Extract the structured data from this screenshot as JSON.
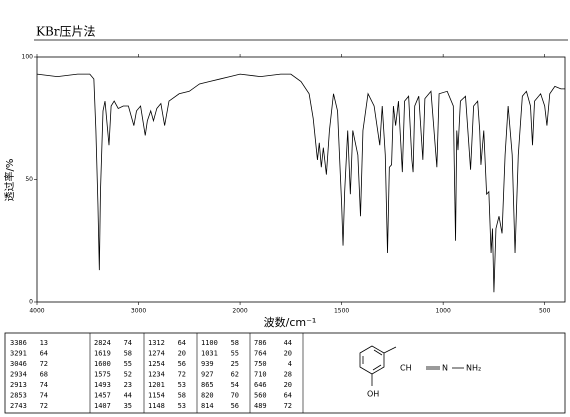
{
  "title": "KBr压片法",
  "chart_data": {
    "type": "line",
    "x_label": "波数/cm⁻¹",
    "y_label": "透过率/%",
    "xlim": [
      4000,
      400
    ],
    "x_scale_change": 2000,
    "xticks": [
      4000,
      3000,
      2000,
      1500,
      1000,
      500
    ],
    "ylim": [
      0,
      100
    ],
    "yticks": [
      0,
      50,
      100
    ],
    "series": [
      {
        "color": "#000000",
        "x": [
          4000,
          3800,
          3600,
          3480,
          3440,
          3420,
          3400,
          3386,
          3375,
          3350,
          3330,
          3291,
          3270,
          3240,
          3200,
          3150,
          3100,
          3046,
          3020,
          2980,
          2934,
          2913,
          2880,
          2853,
          2820,
          2780,
          2743,
          2700,
          2600,
          2500,
          2400,
          2300,
          2200,
          2100,
          2000,
          1900,
          1800,
          1750,
          1700,
          1660,
          1640,
          1619,
          1610,
          1600,
          1590,
          1575,
          1560,
          1540,
          1520,
          1500,
          1493,
          1485,
          1470,
          1457,
          1445,
          1420,
          1407,
          1395,
          1370,
          1340,
          1312,
          1300,
          1285,
          1274,
          1265,
          1254,
          1245,
          1234,
          1220,
          1201,
          1190,
          1170,
          1154,
          1148,
          1140,
          1120,
          1100,
          1090,
          1060,
          1031,
          1020,
          980,
          950,
          939,
          933,
          927,
          915,
          890,
          865,
          850,
          830,
          820,
          814,
          800,
          786,
          775,
          764,
          757,
          750,
          740,
          725,
          710,
          695,
          680,
          660,
          646,
          630,
          610,
          590,
          570,
          560,
          550,
          520,
          500,
          489,
          475,
          450,
          420,
          400
        ],
        "values": [
          93,
          92,
          93,
          93,
          91,
          70,
          40,
          13,
          45,
          78,
          82,
          64,
          80,
          82,
          79,
          80,
          80,
          72,
          78,
          80,
          68,
          74,
          78,
          74,
          79,
          81,
          72,
          82,
          85,
          86,
          89,
          90,
          91,
          92,
          93,
          92,
          93,
          93,
          90,
          85,
          75,
          58,
          65,
          55,
          63,
          52,
          70,
          85,
          78,
          40,
          23,
          45,
          70,
          44,
          70,
          60,
          35,
          70,
          85,
          80,
          64,
          80,
          60,
          20,
          55,
          56,
          80,
          72,
          82,
          53,
          82,
          84,
          58,
          53,
          80,
          84,
          58,
          83,
          86,
          55,
          85,
          86,
          80,
          25,
          70,
          62,
          82,
          84,
          54,
          80,
          82,
          70,
          56,
          70,
          44,
          45,
          20,
          30,
          4,
          30,
          35,
          28,
          60,
          80,
          60,
          20,
          60,
          84,
          86,
          80,
          64,
          82,
          85,
          80,
          72,
          85,
          88,
          87,
          87
        ]
      }
    ]
  },
  "peak_table": {
    "columns": [
      [
        [
          3386,
          13
        ],
        [
          3291,
          64
        ],
        [
          3046,
          72
        ],
        [
          2934,
          68
        ],
        [
          2913,
          74
        ],
        [
          2853,
          74
        ],
        [
          2743,
          72
        ]
      ],
      [
        [
          2824,
          74
        ],
        [
          1619,
          58
        ],
        [
          1600,
          55
        ],
        [
          1575,
          52
        ],
        [
          1493,
          23
        ],
        [
          1457,
          44
        ],
        [
          1407,
          35
        ]
      ],
      [
        [
          1312,
          64
        ],
        [
          1274,
          20
        ],
        [
          1254,
          56
        ],
        [
          1234,
          72
        ],
        [
          1201,
          53
        ],
        [
          1154,
          58
        ],
        [
          1148,
          53
        ]
      ],
      [
        [
          1100,
          58
        ],
        [
          1031,
          55
        ],
        [
          939,
          25
        ],
        [
          927,
          62
        ],
        [
          865,
          54
        ],
        [
          820,
          70
        ],
        [
          814,
          56
        ]
      ],
      [
        [
          786,
          44
        ],
        [
          764,
          20
        ],
        [
          750,
          4
        ],
        [
          710,
          28
        ],
        [
          646,
          20
        ],
        [
          560,
          64
        ],
        [
          489,
          72
        ]
      ]
    ]
  },
  "structure": {
    "labels": [
      "CH",
      "N",
      "NH₂",
      "OH"
    ]
  }
}
